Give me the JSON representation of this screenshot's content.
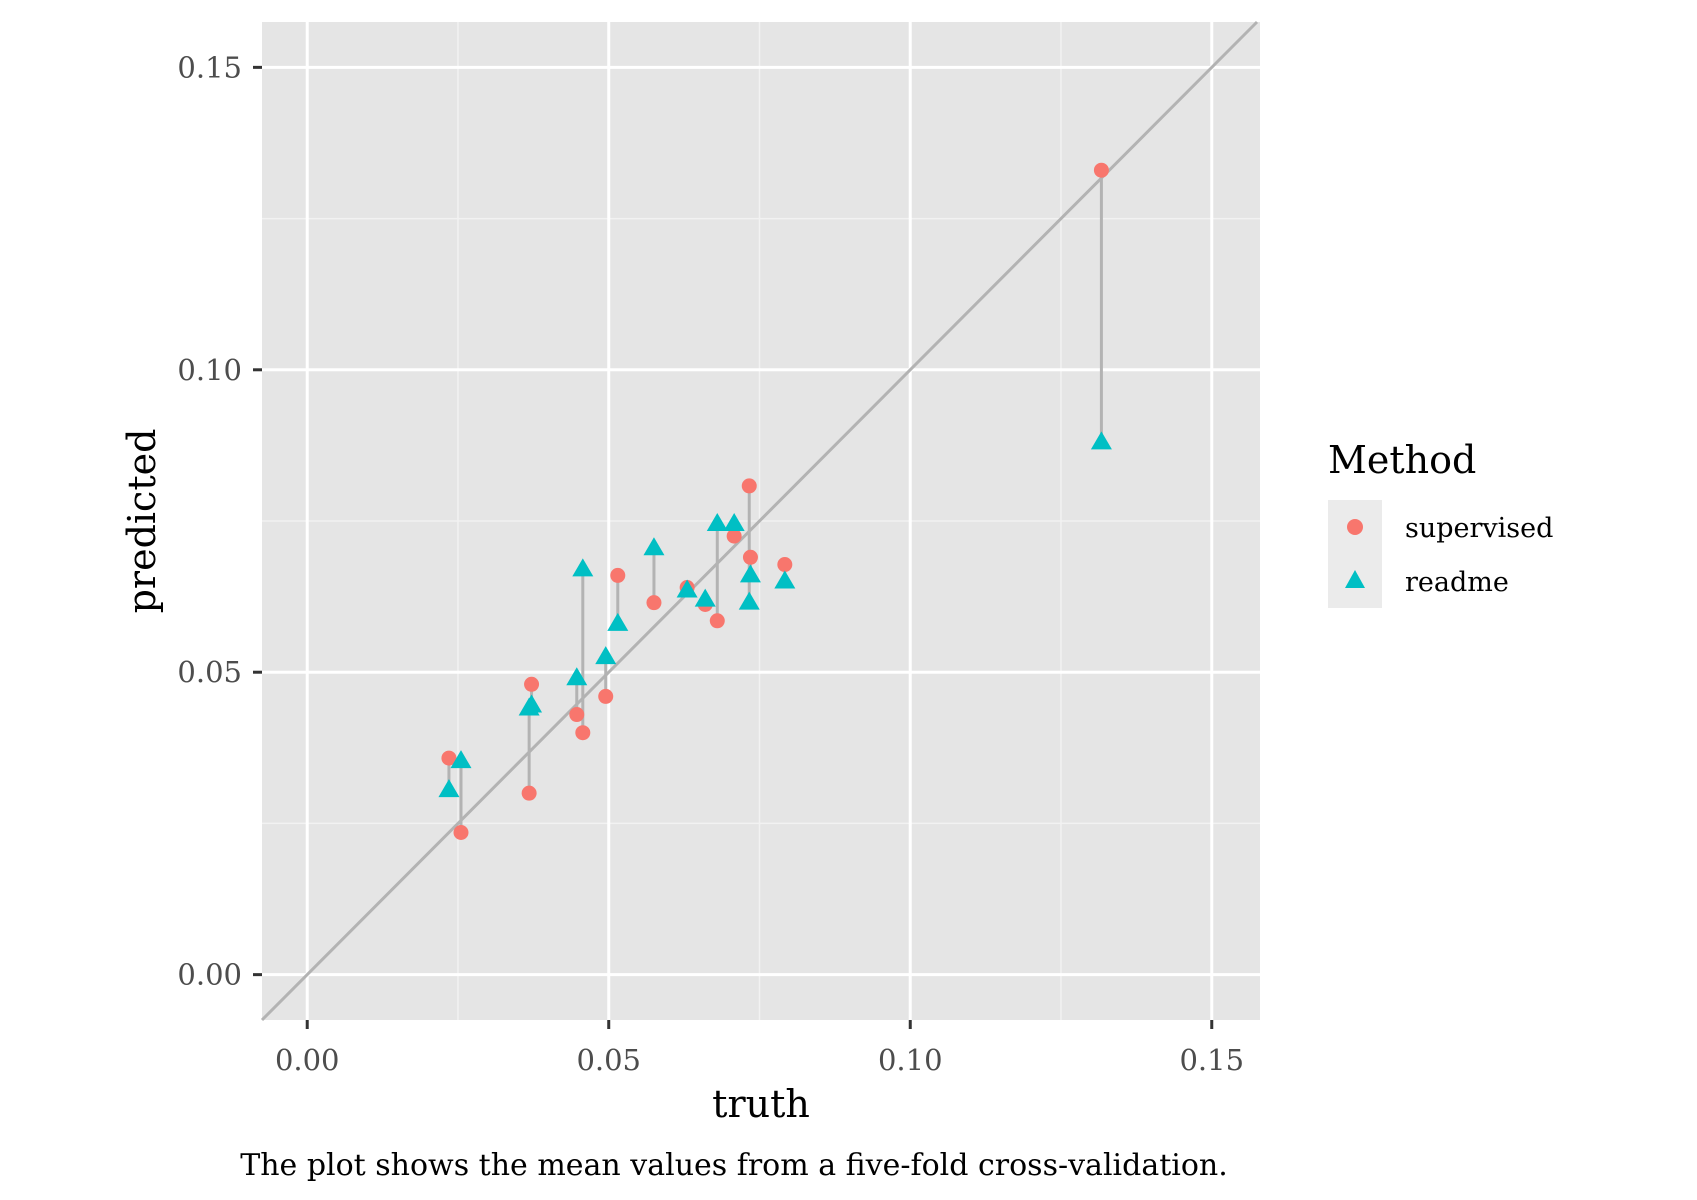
{
  "chart_data": {
    "type": "scatter",
    "xlabel": "truth",
    "ylabel": "predicted",
    "xlim": [
      -0.0075,
      0.158
    ],
    "ylim": [
      -0.0075,
      0.1575
    ],
    "x_ticks": [
      0.0,
      0.05,
      0.1,
      0.15
    ],
    "x_tick_labels": [
      "0.00",
      "0.05",
      "0.10",
      "0.15"
    ],
    "y_ticks": [
      0.0,
      0.05,
      0.1,
      0.15
    ],
    "y_tick_labels": [
      "0.00",
      "0.05",
      "0.10",
      "0.15"
    ],
    "grid": true,
    "reference_line": "y = x",
    "legend": {
      "title": "Method",
      "placement": "right",
      "entries": [
        {
          "label": "supervised",
          "shape": "circle",
          "color": "#F8766D"
        },
        {
          "label": "readme",
          "shape": "triangle",
          "color": "#00BFC4"
        }
      ]
    },
    "caption": "The plot shows the mean values from a five-fold cross-validation.",
    "series": [
      {
        "name": "supervised",
        "shape": "circle",
        "color": "#F8766D",
        "points": [
          {
            "x": 0.0235,
            "y": 0.0358
          },
          {
            "x": 0.0255,
            "y": 0.0235
          },
          {
            "x": 0.0368,
            "y": 0.03
          },
          {
            "x": 0.0372,
            "y": 0.048
          },
          {
            "x": 0.0447,
            "y": 0.043
          },
          {
            "x": 0.0457,
            "y": 0.04
          },
          {
            "x": 0.0495,
            "y": 0.046
          },
          {
            "x": 0.0515,
            "y": 0.066
          },
          {
            "x": 0.0575,
            "y": 0.0615
          },
          {
            "x": 0.063,
            "y": 0.064
          },
          {
            "x": 0.066,
            "y": 0.0612
          },
          {
            "x": 0.068,
            "y": 0.0585
          },
          {
            "x": 0.0708,
            "y": 0.0725
          },
          {
            "x": 0.0733,
            "y": 0.0808
          },
          {
            "x": 0.0735,
            "y": 0.069
          },
          {
            "x": 0.0792,
            "y": 0.0678
          },
          {
            "x": 0.1317,
            "y": 0.133
          }
        ]
      },
      {
        "name": "readme",
        "shape": "triangle",
        "color": "#00BFC4",
        "points": [
          {
            "x": 0.0235,
            "y": 0.0305
          },
          {
            "x": 0.0255,
            "y": 0.0353
          },
          {
            "x": 0.0368,
            "y": 0.044
          },
          {
            "x": 0.0372,
            "y": 0.0445
          },
          {
            "x": 0.0447,
            "y": 0.049
          },
          {
            "x": 0.0457,
            "y": 0.067
          },
          {
            "x": 0.0495,
            "y": 0.0525
          },
          {
            "x": 0.0515,
            "y": 0.058
          },
          {
            "x": 0.0575,
            "y": 0.0705
          },
          {
            "x": 0.063,
            "y": 0.0635
          },
          {
            "x": 0.066,
            "y": 0.062
          },
          {
            "x": 0.068,
            "y": 0.0745
          },
          {
            "x": 0.0708,
            "y": 0.0745
          },
          {
            "x": 0.0733,
            "y": 0.0615
          },
          {
            "x": 0.0735,
            "y": 0.066
          },
          {
            "x": 0.0792,
            "y": 0.065
          },
          {
            "x": 0.1317,
            "y": 0.088
          }
        ]
      }
    ]
  },
  "colors": {
    "panel_background": "#E5E5E5",
    "grid_major": "#FFFFFF",
    "grid_minor": "#F2F2F2",
    "reference_line": "#B3B3B3",
    "segment": "#B3B3B3",
    "legend_key_background": "#EBEBEB"
  }
}
